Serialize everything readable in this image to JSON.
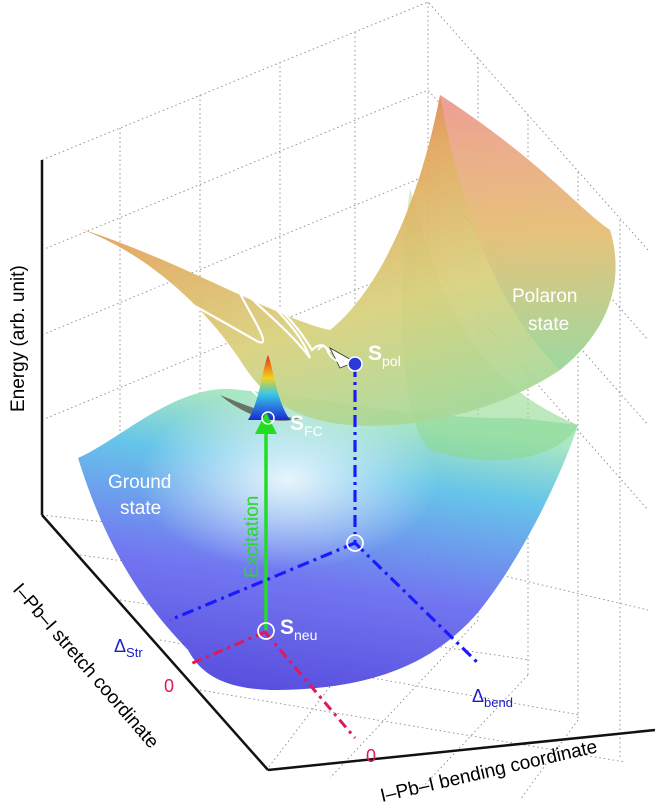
{
  "axes": {
    "energy_label": "Energy (arb. unit)",
    "stretch_label": "I–Pb–I stretch coordinate",
    "bending_label": "I–Pb–I bending coordinate"
  },
  "markers": {
    "delta_str": {
      "main": "Δ",
      "sub": "Str"
    },
    "delta_bend": {
      "main": "Δ",
      "sub": "bend"
    },
    "zero_stretch": "0",
    "zero_bend": "0"
  },
  "states": {
    "ground": {
      "line1": "Ground",
      "line2": "state"
    },
    "polaron": {
      "line1": "Polaron",
      "line2": "state"
    }
  },
  "points": {
    "s_neu": {
      "main": "S",
      "sub": "neu"
    },
    "s_fc": {
      "main": "S",
      "sub": "FC"
    },
    "s_pol": {
      "main": "S",
      "sub": "pol"
    }
  },
  "transition_label": "Excitation",
  "colors": {
    "excitation_arrow": "#22dd22",
    "stretch_dashes": "#1a1aff",
    "bending_dashes": "#e0185a",
    "marker_text_blue": "#1a1acc",
    "marker_text_red": "#e0185a"
  }
}
